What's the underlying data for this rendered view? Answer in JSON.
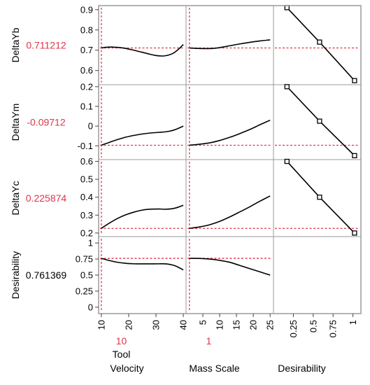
{
  "chart_data": {
    "type": "line",
    "title": "",
    "colors": {
      "current": "#e0344a",
      "curve": "#000000",
      "frame": "#9a9a9a",
      "text": "#000000"
    },
    "factors": [
      {
        "name_lines": [
          "Tool",
          "Velocity"
        ],
        "current_display": "10",
        "current": 10,
        "range": [
          9,
          41
        ],
        "ticks": [
          10,
          20,
          30,
          40
        ],
        "tick_labels": [
          "10",
          "20",
          "30",
          "40"
        ]
      },
      {
        "name_lines": [
          "",
          "Mass Scale"
        ],
        "current_display": "1",
        "current": 1,
        "range": [
          0,
          26
        ],
        "ticks": [
          5,
          10,
          15,
          20,
          25
        ],
        "tick_labels": [
          "5",
          "10",
          "15",
          "20",
          "25"
        ]
      },
      {
        "name_lines": [
          "",
          "Desirability"
        ],
        "current_display": "",
        "current": null,
        "range": [
          0,
          1.1
        ],
        "ticks": [
          0.25,
          0.5,
          0.75,
          1
        ],
        "tick_labels": [
          "0.25",
          "0.5",
          "0.75",
          "1"
        ]
      }
    ],
    "responses": [
      {
        "name": "DeltaYb",
        "current_display": "0.711212",
        "current": 0.711212,
        "value_color": "#e0344a",
        "range": [
          0.53,
          0.92
        ],
        "ticks": [
          0.6,
          0.7,
          0.8,
          0.9
        ],
        "tick_labels": [
          "0.6",
          "0.7",
          "0.8",
          "0.9"
        ],
        "profiles": [
          {
            "x": [
              10,
              12,
              15,
              18,
              21,
              24,
              27,
              30,
              33,
              36,
              38,
              40
            ],
            "y": [
              0.711,
              0.715,
              0.715,
              0.711,
              0.703,
              0.693,
              0.683,
              0.674,
              0.672,
              0.683,
              0.702,
              0.728
            ]
          },
          {
            "x": [
              1,
              3,
              5,
              8,
              10,
              13,
              16,
              19,
              22,
              25
            ],
            "y": [
              0.711,
              0.709,
              0.708,
              0.709,
              0.713,
              0.722,
              0.731,
              0.739,
              0.746,
              0.751
            ]
          },
          {
            "x": [
              0.17,
              0.58,
              1.02
            ],
            "y": [
              0.91,
              0.74,
              0.55
            ],
            "markers": true
          }
        ]
      },
      {
        "name": "DeltaYm",
        "current_display": "-0.09712",
        "current": -0.09712,
        "value_color": "#e0344a",
        "range": [
          -0.17,
          0.21
        ],
        "ticks": [
          -0.1,
          0,
          0.1,
          0.2
        ],
        "tick_labels": [
          "-0.1",
          "0",
          "0.1",
          "0.2"
        ],
        "profiles": [
          {
            "x": [
              10,
              13,
              16,
              19,
              22,
              25,
              28,
              31,
              34,
              37,
              40
            ],
            "y": [
              -0.097,
              -0.082,
              -0.068,
              -0.056,
              -0.047,
              -0.04,
              -0.035,
              -0.032,
              -0.028,
              -0.018,
              0.0
            ]
          },
          {
            "x": [
              1,
              4,
              7,
              10,
              13,
              16,
              19,
              22,
              25
            ],
            "y": [
              -0.097,
              -0.092,
              -0.085,
              -0.073,
              -0.057,
              -0.038,
              -0.017,
              0.007,
              0.03
            ]
          },
          {
            "x": [
              0.17,
              0.58,
              1.02
            ],
            "y": [
              0.2,
              0.025,
              -0.15
            ],
            "markers": true
          }
        ]
      },
      {
        "name": "DeltaYc",
        "current_display": "0.225874",
        "current": 0.225874,
        "value_color": "#e0344a",
        "range": [
          0.18,
          0.61
        ],
        "ticks": [
          0.2,
          0.3,
          0.4,
          0.5,
          0.6
        ],
        "tick_labels": [
          "0.2",
          "0.3",
          "0.4",
          "0.5",
          "0.6"
        ],
        "profiles": [
          {
            "x": [
              10,
              13,
              16,
              19,
              22,
              25,
              28,
              31,
              34,
              37,
              40
            ],
            "y": [
              0.226,
              0.256,
              0.282,
              0.302,
              0.317,
              0.328,
              0.333,
              0.334,
              0.333,
              0.339,
              0.355
            ]
          },
          {
            "x": [
              1,
              4,
              7,
              10,
              13,
              16,
              19,
              22,
              25
            ],
            "y": [
              0.226,
              0.234,
              0.246,
              0.265,
              0.29,
              0.318,
              0.347,
              0.378,
              0.407
            ]
          },
          {
            "x": [
              0.17,
              0.58,
              1.02
            ],
            "y": [
              0.6,
              0.4,
              0.2
            ],
            "markers": true
          }
        ]
      },
      {
        "name": "Desirability",
        "current_display": "0.761369",
        "current": 0.761369,
        "value_color": "#000000",
        "range": [
          -0.1,
          1.1
        ],
        "ticks": [
          0,
          0.25,
          0.5,
          0.75,
          1
        ],
        "tick_labels": [
          "0",
          "0.25",
          "0.5",
          "0.75",
          "1"
        ],
        "profiles": [
          {
            "x": [
              10,
              13,
              16,
              19,
              22,
              25,
              28,
              31,
              34,
              37,
              40
            ],
            "y": [
              0.761,
              0.726,
              0.699,
              0.683,
              0.676,
              0.675,
              0.675,
              0.676,
              0.674,
              0.645,
              0.58
            ]
          },
          {
            "x": [
              1,
              4,
              7,
              10,
              13,
              16,
              19,
              22,
              25
            ],
            "y": [
              0.761,
              0.76,
              0.75,
              0.73,
              0.7,
              0.65,
              0.6,
              0.55,
              0.5
            ]
          },
          null
        ]
      }
    ]
  }
}
